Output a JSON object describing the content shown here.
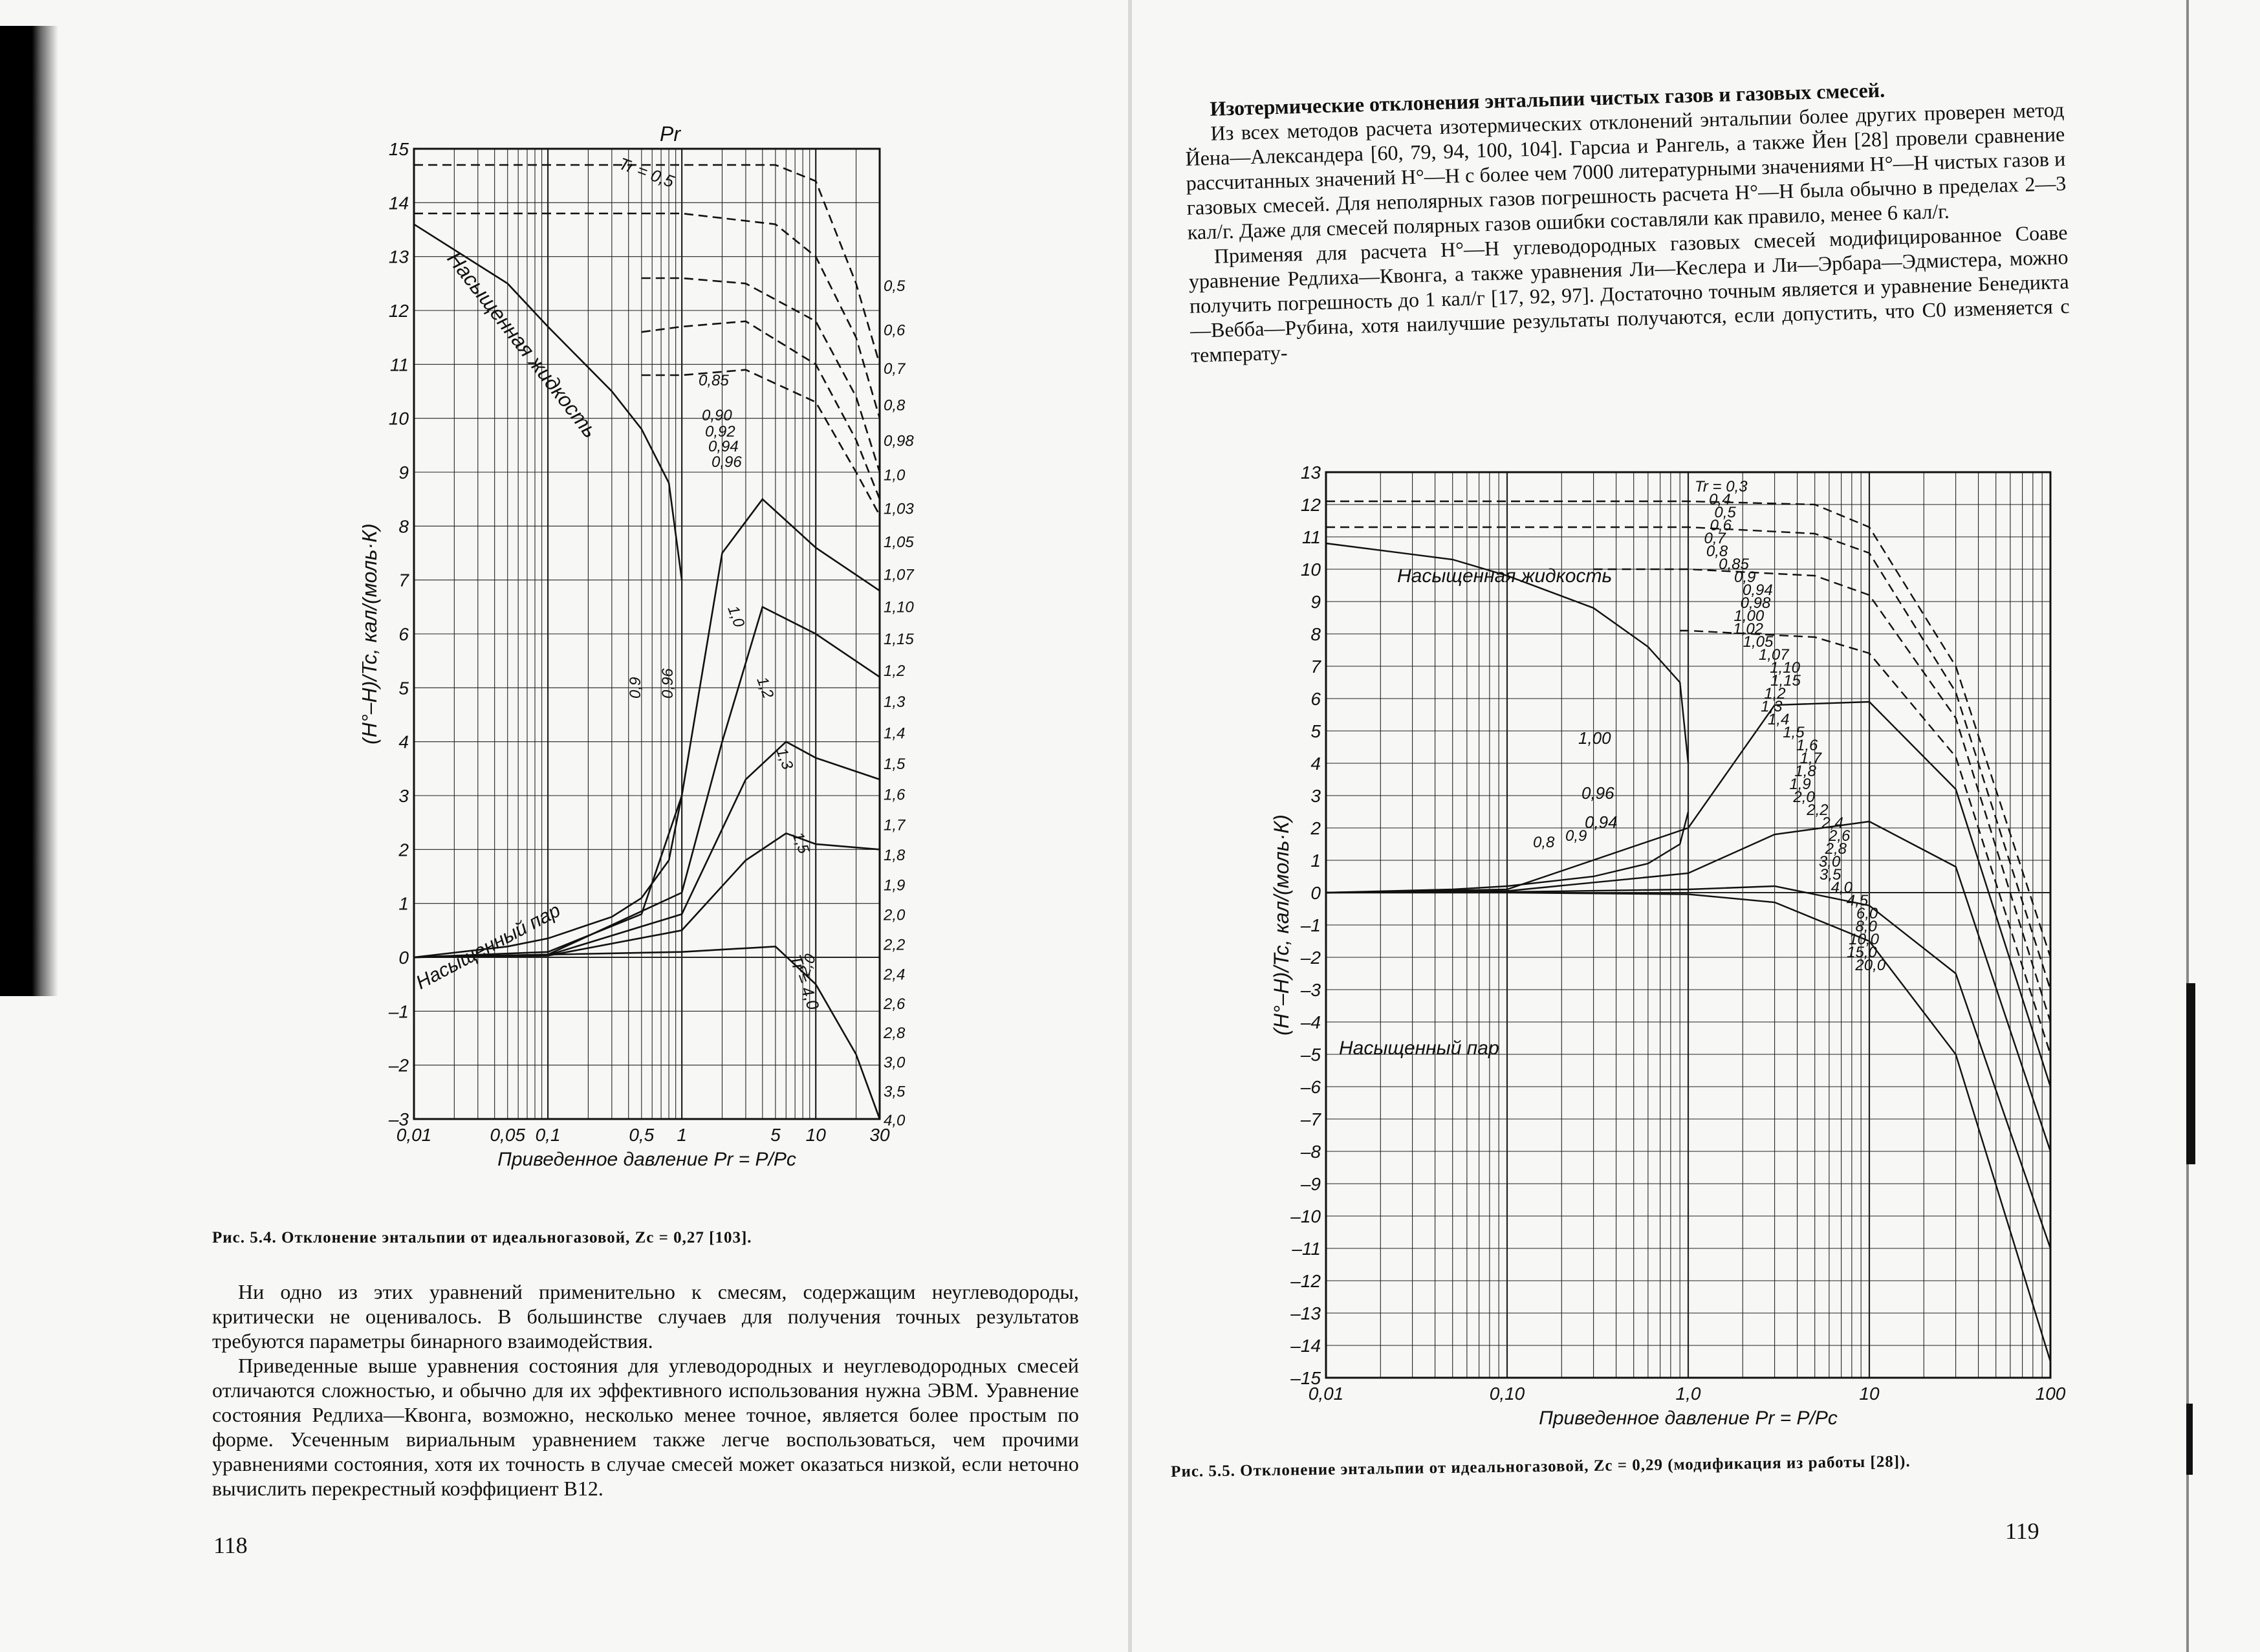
{
  "left_page": {
    "figure": {
      "caption": "Рис. 5.4. Отклонение энтальпии от идеальногазовой, Zc = 0,27 [103].",
      "chart_data": {
        "type": "line",
        "title": "",
        "top_label": "Pr",
        "xlabel": "Приведенное давление Pr = P/Pc",
        "ylabel": "(H°–H)/Tc, кал/(моль·К)",
        "x_scale": "log",
        "xlim": [
          0.01,
          30
        ],
        "ylim": [
          -3,
          15
        ],
        "x_tick_labels": [
          "0,01",
          "0,05",
          "0,1",
          "0,5",
          "1",
          "5",
          "10",
          "30"
        ],
        "y_tick_labels": [
          "15",
          "14",
          "13",
          "12",
          "11",
          "10",
          "9",
          "8",
          "7",
          "6",
          "5",
          "4",
          "3",
          "2",
          "1",
          "0",
          "–1",
          "–2",
          "–3"
        ],
        "grid": true,
        "annotations": [
          "Насыщенная жидкость",
          "Насыщенный пар",
          "Tr = 0,5",
          "Tr = 4,0",
          "0,85",
          "0,90",
          "0,92",
          "0,94",
          "0,96",
          "1,0",
          "1,2",
          "1,3",
          "1,5",
          "2,0",
          "0,9",
          "0,96"
        ],
        "right_tr_labels": [
          "0,5",
          "0,6",
          "0,7",
          "0,8",
          "0,98",
          "1,0",
          "1,03",
          "1,05",
          "1,07",
          "1,10",
          "1,15",
          "1,2",
          "1,3",
          "1,4",
          "1,5",
          "1,6",
          "1,7",
          "1,8",
          "1,9",
          "2,0",
          "2,2",
          "2,4",
          "2,6",
          "2,8",
          "3,0",
          "3,5",
          "4,0"
        ],
        "saturated_liquid": {
          "x": [
            0.01,
            0.05,
            0.1,
            0.3,
            0.5,
            0.8,
            1.0
          ],
          "y": [
            13.6,
            12.5,
            11.7,
            10.5,
            9.8,
            8.8,
            7.0
          ]
        },
        "saturated_vapor": {
          "x": [
            0.01,
            0.05,
            0.1,
            0.3,
            0.5,
            0.8,
            1.0
          ],
          "y": [
            0.0,
            0.2,
            0.35,
            0.75,
            1.1,
            1.8,
            3.0
          ]
        },
        "series": [
          {
            "name": "0,5",
            "x": [
              0.01,
              1,
              5,
              10,
              20,
              30
            ],
            "y": [
              14.7,
              14.7,
              14.7,
              14.4,
              12.5,
              11.0
            ]
          },
          {
            "name": "0,6",
            "x": [
              0.01,
              1,
              5,
              10,
              20,
              30
            ],
            "y": [
              13.8,
              13.8,
              13.6,
              13.0,
              11.5,
              10.0
            ]
          },
          {
            "name": "0,7",
            "x": [
              0.5,
              1,
              3,
              10,
              20,
              30
            ],
            "y": [
              12.6,
              12.6,
              12.5,
              11.8,
              10.4,
              9.0
            ]
          },
          {
            "name": "0,8",
            "x": [
              0.5,
              1,
              3,
              10,
              20,
              30
            ],
            "y": [
              11.6,
              11.7,
              11.8,
              11.0,
              9.6,
              8.5
            ]
          },
          {
            "name": "0,85",
            "x": [
              0.5,
              1,
              3,
              10,
              20,
              30
            ],
            "y": [
              10.8,
              10.8,
              10.9,
              10.3,
              9.0,
              8.2
            ]
          },
          {
            "name": "1,0",
            "x": [
              0.01,
              0.1,
              0.5,
              1,
              2,
              4,
              10,
              30
            ],
            "y": [
              0.0,
              0.1,
              0.8,
              3.0,
              7.5,
              8.5,
              7.6,
              6.8
            ]
          },
          {
            "name": "1,2",
            "x": [
              0.01,
              0.1,
              1,
              2,
              4,
              10,
              30
            ],
            "y": [
              0.0,
              0.05,
              1.2,
              4.0,
              6.5,
              6.0,
              5.2
            ]
          },
          {
            "name": "1,5",
            "x": [
              0.01,
              0.1,
              1,
              3,
              6,
              10,
              30
            ],
            "y": [
              0.0,
              0.04,
              0.8,
              3.3,
              4.0,
              3.7,
              3.3
            ]
          },
          {
            "name": "2,0",
            "x": [
              0.01,
              0.1,
              1,
              3,
              6,
              10,
              30
            ],
            "y": [
              0.0,
              0.03,
              0.5,
              1.8,
              2.3,
              2.1,
              2.0
            ]
          },
          {
            "name": "4,0",
            "x": [
              0.01,
              1,
              5,
              10,
              20,
              30
            ],
            "y": [
              0.0,
              0.1,
              0.2,
              -0.5,
              -1.8,
              -3.0
            ]
          }
        ]
      }
    },
    "body_paragraphs": [
      "Ни одно из этих уравнений применительно к смесям, содержащим неуглеводороды, критически не оценивалось. В большинстве случаев для получения точных результатов требуются параметры бинарного взаимодействия.",
      "Приведенные выше уравнения состояния для углеводородных и неуглеводородных смесей отличаются сложностью, и обычно для их эффективного использования нужна ЭВМ. Уравнение состояния Редлиха—Квонга, возможно, несколько менее точное, является более простым по форме. Усеченным вириальным уравнением также легче воспользоваться, чем прочими уравнениями состояния, хотя их точность в случае смесей может оказаться низкой, если неточно вычислить перекрестный коэффициент B12."
    ],
    "page_number": "118"
  },
  "right_page": {
    "heading": "Изотермические отклонения энтальпии чистых газов и газовых смесей.",
    "body_paragraphs": [
      "Из всех методов расчета изотермических отклонений энтальпии более других проверен метод Йена—Александера [60, 79, 94, 100, 104]. Гарсиа и Рангель, а также Йен [28] провели сравнение рассчитанных значений H°—H с более чем 7000 литературными значениями H°—H чистых газов и газовых смесей. Для неполярных газов погрешность расчета H°—H была обычно в пределах 2—3 кал/г. Даже для смесей полярных газов ошибки составляли как правило, менее 6 кал/г.",
      "Применяя для расчета H°—H углеводородных газовых смесей модифицированное Соаве уравнение Редлиха—Квонга, а также уравнения Ли—Кеслера и Ли—Эрбара—Эдмистера, можно получить погрешность до 1 кал/г [17, 92, 97]. Достаточно точным является и уравнение Бенедикта—Вебба—Рубина, хотя наилучшие результаты получаются, если допустить, что C0 изменяется с температу-"
    ],
    "figure": {
      "caption": "Рис. 5.5. Отклонение энтальпии от идеальногазовой, Zc = 0,29 (модификация из работы [28]).",
      "chart_data": {
        "type": "line",
        "title": "",
        "xlabel": "Приведенное давление Pr = P/Pc",
        "ylabel": "(H°–H)/Tc, кал/(моль·К)",
        "x_scale": "log",
        "xlim": [
          0.01,
          100
        ],
        "ylim": [
          -15,
          13
        ],
        "x_tick_labels": [
          "0,01",
          "0,10",
          "1,0",
          "10",
          "100"
        ],
        "y_tick_labels": [
          "13",
          "12",
          "11",
          "10",
          "9",
          "8",
          "7",
          "6",
          "5",
          "4",
          "3",
          "2",
          "1",
          "0",
          "–1",
          "–2",
          "–3",
          "–4",
          "–5",
          "–6",
          "–7",
          "–8",
          "–9",
          "–10",
          "–11",
          "–12",
          "–13",
          "–14",
          "–15"
        ],
        "grid": true,
        "annotations": [
          "Насыщенная жидкость",
          "Насыщенный пар",
          "1,00",
          "0,96",
          "0,94",
          "0,8",
          "0,9"
        ],
        "tr_labels": [
          "Tr = 0,3",
          "0,4",
          "0,5",
          "0,6",
          "0,7",
          "0,8",
          "0,85",
          "0,9",
          "0,94",
          "0,98",
          "1,00",
          "1,02",
          "1,05",
          "1,07",
          "1,10",
          "1,15",
          "1,2",
          "1,3",
          "1,4",
          "1,5",
          "1,6",
          "1,7",
          "1,8",
          "1,9",
          "2,0",
          "2,2",
          "2,4",
          "2,6",
          "2,8",
          "3,0",
          "3,5",
          "4,0",
          "4,5",
          "6,0",
          "8,0",
          "10,0",
          "15,0",
          "20,0"
        ],
        "saturated_liquid": {
          "x": [
            0.01,
            0.05,
            0.1,
            0.3,
            0.6,
            0.9,
            1.0
          ],
          "y": [
            10.8,
            10.3,
            9.8,
            8.8,
            7.6,
            6.5,
            4.0
          ]
        },
        "saturated_vapor": {
          "x": [
            0.01,
            0.05,
            0.1,
            0.3,
            0.6,
            0.9,
            1.0
          ],
          "y": [
            0.0,
            0.1,
            0.2,
            0.5,
            0.9,
            1.5,
            2.5
          ]
        },
        "series": [
          {
            "name": "0,3",
            "x": [
              0.01,
              1,
              5,
              10,
              30,
              100
            ],
            "y": [
              12.1,
              12.1,
              12.0,
              11.3,
              7.0,
              -2.0
            ]
          },
          {
            "name": "0,5",
            "x": [
              0.01,
              1,
              5,
              10,
              30,
              100
            ],
            "y": [
              11.3,
              11.3,
              11.1,
              10.5,
              6.2,
              -3.0
            ]
          },
          {
            "name": "0,7",
            "x": [
              0.3,
              1,
              5,
              10,
              30,
              100
            ],
            "y": [
              10.0,
              10.0,
              9.8,
              9.2,
              5.4,
              -4.0
            ]
          },
          {
            "name": "0,9",
            "x": [
              0.9,
              1,
              5,
              10,
              30,
              100
            ],
            "y": [
              8.1,
              8.1,
              7.9,
              7.4,
              4.2,
              -5.0
            ]
          },
          {
            "name": "1,2",
            "x": [
              0.01,
              0.1,
              1,
              3,
              10,
              30,
              100
            ],
            "y": [
              0.0,
              0.1,
              2.0,
              5.8,
              5.9,
              3.2,
              -6.0
            ]
          },
          {
            "name": "2,0",
            "x": [
              0.01,
              0.1,
              1,
              3,
              10,
              30,
              100
            ],
            "y": [
              0.0,
              0.05,
              0.6,
              1.8,
              2.2,
              0.8,
              -8.0
            ]
          },
          {
            "name": "4,0",
            "x": [
              0.01,
              0.1,
              1,
              3,
              10,
              30,
              100
            ],
            "y": [
              0.0,
              0.02,
              0.1,
              0.2,
              -0.4,
              -2.5,
              -11.0
            ]
          },
          {
            "name": "20,0",
            "x": [
              0.01,
              0.1,
              1,
              3,
              10,
              30,
              100
            ],
            "y": [
              0.0,
              0.0,
              -0.05,
              -0.3,
              -1.5,
              -5.0,
              -14.5
            ]
          }
        ]
      }
    },
    "page_number": "119"
  }
}
